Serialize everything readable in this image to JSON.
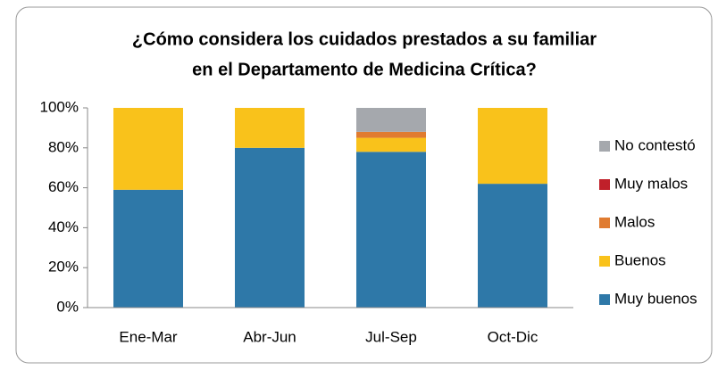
{
  "chart_data": {
    "type": "stacked_bar",
    "title": [
      "¿Cómo considera los cuidados prestados a su familiar",
      "en el Departamento de Medicina Crítica?"
    ],
    "categories": [
      "Ene-Mar",
      "Abr-Jun",
      "Jul-Sep",
      "Oct-Dic"
    ],
    "series": [
      {
        "name": "Muy buenos",
        "color": "#2e78a8",
        "values": [
          59,
          80,
          78,
          62
        ]
      },
      {
        "name": "Buenos",
        "color": "#f9c21b",
        "values": [
          41,
          20,
          7,
          38
        ]
      },
      {
        "name": "Malos",
        "color": "#e07b30",
        "values": [
          0,
          0,
          3,
          0
        ]
      },
      {
        "name": "Muy malos",
        "color": "#c0202a",
        "values": [
          0,
          0,
          0,
          0
        ]
      },
      {
        "name": "No contestó",
        "color": "#a5a8ad",
        "values": [
          0,
          0,
          12,
          0
        ]
      }
    ],
    "ylim": [
      0,
      100
    ],
    "yticks": [
      {
        "value": 0,
        "label": "0%"
      },
      {
        "value": 20,
        "label": "20%"
      },
      {
        "value": 40,
        "label": "40%"
      },
      {
        "value": 60,
        "label": "60%"
      },
      {
        "value": 80,
        "label": "80%"
      },
      {
        "value": 100,
        "label": "100%"
      }
    ],
    "grid": false,
    "legend": "right"
  }
}
